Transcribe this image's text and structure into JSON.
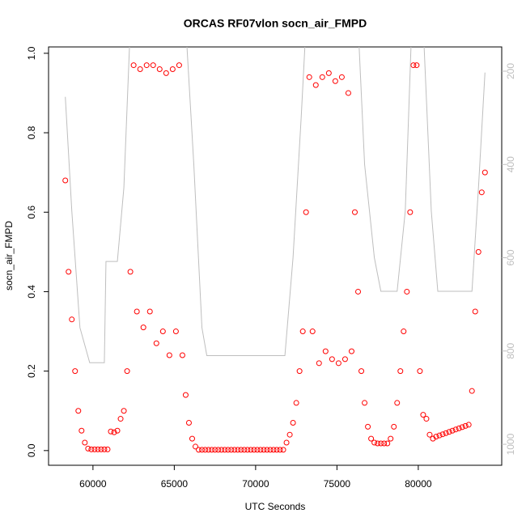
{
  "chart_data": {
    "type": "scatter",
    "title": "ORCAS RF07vlon socn_air_FMPD",
    "xlabel": "UTC Seconds",
    "ylabel": "socn_air_FMPD",
    "xlim": [
      57270,
      85130
    ],
    "ylim": [
      -0.037,
      1.016
    ],
    "y2lim": [
      1045,
      148
    ],
    "xticks": [
      60000,
      65000,
      70000,
      75000,
      80000
    ],
    "yticks": [
      {
        "value": 0,
        "label": "0.0"
      },
      0.2,
      0.4,
      0.6,
      0.8,
      {
        "value": 1,
        "label": "1.0"
      }
    ],
    "y2ticks": [
      200,
      400,
      600,
      800,
      1000
    ],
    "series": [
      {
        "color": "#ff0000",
        "style": "points",
        "x": [
          58300,
          58500,
          58700,
          58900,
          59100,
          59300,
          59500,
          59700,
          59900,
          60100,
          60300,
          60500,
          60700,
          60900,
          61100,
          61300,
          61500,
          61700,
          61900,
          62100,
          62300,
          62500,
          62700,
          62900,
          63100,
          63300,
          63500,
          63700,
          63900,
          64100,
          64300,
          64500,
          64700,
          64900,
          65100,
          65300,
          65500,
          65700,
          65900,
          66100,
          66300,
          66500,
          66700,
          66900,
          67100,
          67300,
          67500,
          67700,
          67900,
          68100,
          68300,
          68500,
          68700,
          68900,
          69100,
          69300,
          69500,
          69700,
          69900,
          70100,
          70300,
          70500,
          70700,
          70900,
          71100,
          71300,
          71500,
          71700,
          71900,
          72100,
          72300,
          72500,
          72700,
          72900,
          73100,
          73300,
          73500,
          73700,
          73900,
          74100,
          74300,
          74500,
          74700,
          74900,
          75100,
          75300,
          75500,
          75700,
          75900,
          76100,
          76300,
          76500,
          76700,
          76900,
          77100,
          77300,
          77500,
          77700,
          77900,
          78100,
          78300,
          78500,
          78700,
          78900,
          79100,
          79300,
          79500,
          79700,
          79900,
          80100,
          80300,
          80500,
          80700,
          80900,
          81100,
          81300,
          81500,
          81700,
          81900,
          82100,
          82300,
          82500,
          82700,
          82900,
          83100,
          83300,
          83500,
          83700,
          83900,
          84100
        ],
        "values": [
          0.68,
          0.45,
          0.33,
          0.2,
          0.1,
          0.05,
          0.02,
          0.005,
          0.003,
          0.003,
          0.003,
          0.003,
          0.003,
          0.003,
          0.048,
          0.046,
          0.05,
          0.08,
          0.1,
          0.2,
          0.45,
          0.97,
          0.35,
          0.96,
          0.31,
          0.97,
          0.35,
          0.97,
          0.27,
          0.96,
          0.3,
          0.95,
          0.24,
          0.96,
          0.3,
          0.97,
          0.24,
          0.14,
          0.07,
          0.03,
          0.01,
          0.002,
          0.002,
          0.002,
          0.002,
          0.002,
          0.002,
          0.002,
          0.002,
          0.002,
          0.002,
          0.002,
          0.002,
          0.002,
          0.002,
          0.002,
          0.002,
          0.002,
          0.002,
          0.002,
          0.002,
          0.002,
          0.002,
          0.002,
          0.002,
          0.002,
          0.002,
          0.002,
          0.02,
          0.04,
          0.07,
          0.12,
          0.2,
          0.3,
          0.6,
          0.94,
          0.3,
          0.92,
          0.22,
          0.94,
          0.25,
          0.95,
          0.23,
          0.93,
          0.22,
          0.94,
          0.23,
          0.9,
          0.25,
          0.6,
          0.4,
          0.2,
          0.12,
          0.06,
          0.03,
          0.02,
          0.018,
          0.018,
          0.018,
          0.018,
          0.03,
          0.06,
          0.12,
          0.2,
          0.3,
          0.4,
          0.6,
          0.97,
          0.97,
          0.2,
          0.09,
          0.08,
          0.04,
          0.03,
          0.035,
          0.038,
          0.041,
          0.044,
          0.047,
          0.05,
          0.053,
          0.056,
          0.059,
          0.062,
          0.065,
          0.15,
          0.35,
          0.5,
          0.65,
          0.7
        ]
      },
      {
        "color": "#bebebe",
        "style": "line",
        "axis": "y2",
        "x": [
          58300,
          58700,
          59200,
          59800,
          60700,
          60800,
          61500,
          61900,
          62300,
          65700,
          66200,
          66700,
          67000,
          71800,
          72300,
          72800,
          73100,
          76300,
          76700,
          77300,
          77700,
          78700,
          79200,
          79600,
          80300,
          80800,
          81200,
          83300,
          83700,
          84100
        ],
        "values": [
          255,
          500,
          750,
          825,
          825,
          608,
          608,
          450,
          100,
          100,
          400,
          750,
          810,
          810,
          600,
          300,
          100,
          100,
          400,
          600,
          672,
          672,
          500,
          100,
          100,
          500,
          672,
          672,
          450,
          203
        ]
      }
    ]
  }
}
